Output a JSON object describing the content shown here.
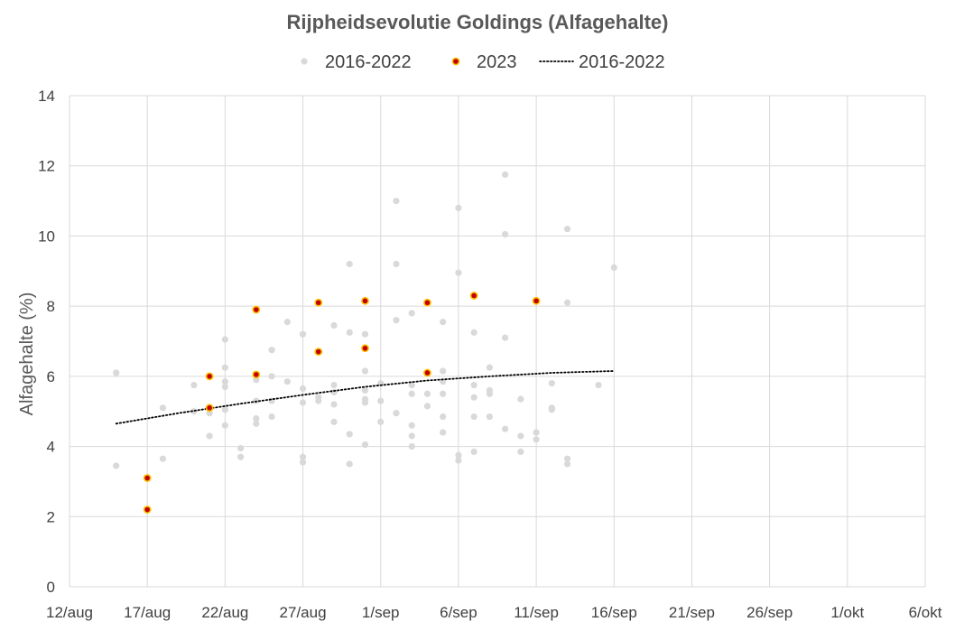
{
  "chart_data": {
    "type": "scatter",
    "title": "Rijpheidsevolutie Goldings (Alfagehalte)",
    "xlabel": "",
    "ylabel": "Alfagehalte (%)",
    "x_tick_labels": [
      "12/aug",
      "17/aug",
      "22/aug",
      "27/aug",
      "1/sep",
      "6/sep",
      "11/sep",
      "16/sep",
      "21/sep",
      "26/sep",
      "1/okt",
      "6/okt"
    ],
    "xlim": [
      "12/aug",
      "6/okt"
    ],
    "ylim": [
      0,
      14
    ],
    "y_ticks": [
      0,
      2,
      4,
      6,
      8,
      10,
      12,
      14
    ],
    "grid": true,
    "legend_position": "top",
    "legend": [
      {
        "label": "2016-2022",
        "marker": "dot",
        "color": "#d9d9d9"
      },
      {
        "label": "2023",
        "marker": "dot",
        "color": "#c00000",
        "edge": "#ffc000"
      },
      {
        "label": "2016-2022",
        "marker": "dotted-line",
        "color": "#000000"
      }
    ],
    "series": [
      {
        "name": "2016-2022",
        "kind": "scatter",
        "color": "#d9d9d9",
        "points": [
          [
            "15/aug",
            6.1
          ],
          [
            "15/aug",
            3.45
          ],
          [
            "18/aug",
            5.1
          ],
          [
            "18/aug",
            3.65
          ],
          [
            "20/aug",
            5.75
          ],
          [
            "20/aug",
            5.0
          ],
          [
            "21/aug",
            4.95
          ],
          [
            "21/aug",
            4.3
          ],
          [
            "22/aug",
            7.05
          ],
          [
            "22/aug",
            6.25
          ],
          [
            "22/aug",
            5.85
          ],
          [
            "22/aug",
            5.7
          ],
          [
            "22/aug",
            5.05
          ],
          [
            "22/aug",
            4.6
          ],
          [
            "23/aug",
            3.95
          ],
          [
            "23/aug",
            3.7
          ],
          [
            "24/aug",
            5.9
          ],
          [
            "24/aug",
            5.3
          ],
          [
            "24/aug",
            4.8
          ],
          [
            "24/aug",
            4.65
          ],
          [
            "25/aug",
            6.75
          ],
          [
            "25/aug",
            6.0
          ],
          [
            "25/aug",
            5.3
          ],
          [
            "25/aug",
            4.85
          ],
          [
            "26/aug",
            7.55
          ],
          [
            "26/aug",
            5.85
          ],
          [
            "27/aug",
            7.2
          ],
          [
            "27/aug",
            5.65
          ],
          [
            "27/aug",
            5.25
          ],
          [
            "27/aug",
            3.7
          ],
          [
            "27/aug",
            3.55
          ],
          [
            "28/aug",
            5.4
          ],
          [
            "28/aug",
            5.3
          ],
          [
            "29/aug",
            7.45
          ],
          [
            "29/aug",
            5.75
          ],
          [
            "29/aug",
            5.55
          ],
          [
            "29/aug",
            5.2
          ],
          [
            "29/aug",
            4.7
          ],
          [
            "30/aug",
            9.2
          ],
          [
            "30/aug",
            7.25
          ],
          [
            "30/aug",
            4.35
          ],
          [
            "30/aug",
            3.5
          ],
          [
            "31/aug",
            7.2
          ],
          [
            "31/aug",
            6.15
          ],
          [
            "31/aug",
            5.6
          ],
          [
            "31/aug",
            5.35
          ],
          [
            "31/aug",
            5.25
          ],
          [
            "31/aug",
            4.05
          ],
          [
            "1/sep",
            5.8
          ],
          [
            "1/sep",
            5.3
          ],
          [
            "1/sep",
            4.7
          ],
          [
            "2/sep",
            11.0
          ],
          [
            "2/sep",
            9.2
          ],
          [
            "2/sep",
            7.6
          ],
          [
            "2/sep",
            4.95
          ],
          [
            "3/sep",
            7.8
          ],
          [
            "3/sep",
            5.75
          ],
          [
            "3/sep",
            5.5
          ],
          [
            "3/sep",
            4.6
          ],
          [
            "3/sep",
            4.3
          ],
          [
            "3/sep",
            4.0
          ],
          [
            "4/sep",
            5.5
          ],
          [
            "4/sep",
            5.15
          ],
          [
            "5/sep",
            7.55
          ],
          [
            "5/sep",
            6.15
          ],
          [
            "5/sep",
            5.85
          ],
          [
            "5/sep",
            5.5
          ],
          [
            "5/sep",
            4.85
          ],
          [
            "5/sep",
            4.4
          ],
          [
            "6/sep",
            10.8
          ],
          [
            "6/sep",
            8.95
          ],
          [
            "6/sep",
            3.75
          ],
          [
            "6/sep",
            3.6
          ],
          [
            "7/sep",
            7.25
          ],
          [
            "7/sep",
            5.75
          ],
          [
            "7/sep",
            5.4
          ],
          [
            "7/sep",
            4.85
          ],
          [
            "7/sep",
            3.85
          ],
          [
            "8/sep",
            6.25
          ],
          [
            "8/sep",
            5.6
          ],
          [
            "8/sep",
            5.5
          ],
          [
            "8/sep",
            4.85
          ],
          [
            "9/sep",
            11.75
          ],
          [
            "9/sep",
            10.05
          ],
          [
            "9/sep",
            7.1
          ],
          [
            "9/sep",
            4.5
          ],
          [
            "10/sep",
            5.35
          ],
          [
            "10/sep",
            4.3
          ],
          [
            "10/sep",
            3.85
          ],
          [
            "11/sep",
            4.4
          ],
          [
            "11/sep",
            4.2
          ],
          [
            "12/sep",
            5.8
          ],
          [
            "12/sep",
            5.1
          ],
          [
            "12/sep",
            5.05
          ],
          [
            "13/sep",
            10.2
          ],
          [
            "13/sep",
            8.1
          ],
          [
            "13/sep",
            3.65
          ],
          [
            "13/sep",
            3.5
          ],
          [
            "15/sep",
            5.75
          ],
          [
            "16/sep",
            9.1
          ]
        ]
      },
      {
        "name": "2023",
        "kind": "scatter",
        "color": "#c00000",
        "edge": "#ffc000",
        "points": [
          [
            "17/aug",
            3.1
          ],
          [
            "17/aug",
            2.2
          ],
          [
            "21/aug",
            6.0
          ],
          [
            "21/aug",
            5.1
          ],
          [
            "24/aug",
            7.9
          ],
          [
            "24/aug",
            6.05
          ],
          [
            "28/aug",
            8.1
          ],
          [
            "28/aug",
            6.7
          ],
          [
            "31/aug",
            8.15
          ],
          [
            "31/aug",
            6.8
          ],
          [
            "4/sep",
            8.1
          ],
          [
            "4/sep",
            6.1
          ],
          [
            "7/sep",
            8.3
          ],
          [
            "11/sep",
            8.15
          ]
        ]
      },
      {
        "name": "2016-2022",
        "kind": "trendline",
        "color": "#000000",
        "points": [
          [
            "15/aug",
            4.65
          ],
          [
            "19/aug",
            4.95
          ],
          [
            "23/aug",
            5.22
          ],
          [
            "27/aug",
            5.47
          ],
          [
            "31/aug",
            5.7
          ],
          [
            "4/sep",
            5.88
          ],
          [
            "8/sep",
            6.0
          ],
          [
            "12/sep",
            6.1
          ],
          [
            "16/sep",
            6.15
          ]
        ]
      }
    ]
  }
}
